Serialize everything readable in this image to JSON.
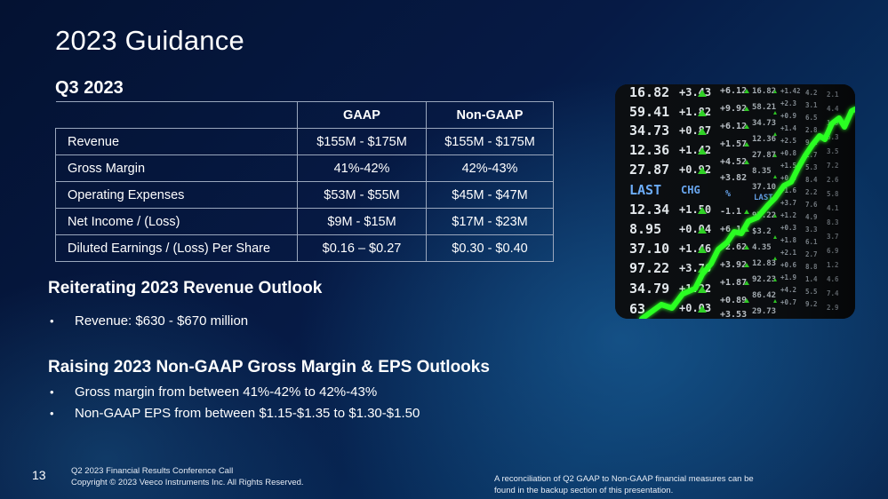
{
  "slide": {
    "title": "2023 Guidance",
    "subtitle": "Q3 2023",
    "page_number": "13"
  },
  "table": {
    "headers": [
      "",
      "GAAP",
      "Non-GAAP"
    ],
    "rows": [
      {
        "label": "Revenue",
        "gaap": "$155M - $175M",
        "non_gaap": "$155M - $175M"
      },
      {
        "label": "Gross Margin",
        "gaap": "41%-42%",
        "non_gaap": "42%-43%"
      },
      {
        "label": "Operating Expenses",
        "gaap": "$53M - $55M",
        "non_gaap": "$45M - $47M"
      },
      {
        "label": "Net Income / (Loss)",
        "gaap": "$9M - $15M",
        "non_gaap": "$17M - $23M"
      },
      {
        "label": "Diluted Earnings / (Loss) Per Share",
        "gaap": "$0.16 – $0.27",
        "non_gaap": "$0.30 - $0.40"
      }
    ]
  },
  "revenue_outlook": {
    "heading": "Reiterating 2023 Revenue Outlook",
    "bullets": [
      "Revenue:  $630 - $670 million"
    ]
  },
  "margin_outlook": {
    "heading": "Raising 2023 Non-GAAP Gross Margin & EPS Outlooks",
    "bullets": [
      "Gross margin from between 41%-42% to 42%-43%",
      "Non-GAAP EPS from between $1.15-$1.35 to $1.30-$1.50"
    ]
  },
  "footer": {
    "line1": "Q2 2023 Financial Results Conference Call",
    "line2": "Copyright © 2023 Veeco Instruments Inc. All Rights Reserved.",
    "note_line1": "A reconciliation of Q2 GAAP to Non-GAAP financial measures can be",
    "note_line2": "found in the backup section of this presentation."
  },
  "colors": {
    "background": "#061a45",
    "text": "#ffffff",
    "ticker_green": "#39ff2a"
  },
  "icons": {
    "bullet": "bullet-dot-icon"
  }
}
